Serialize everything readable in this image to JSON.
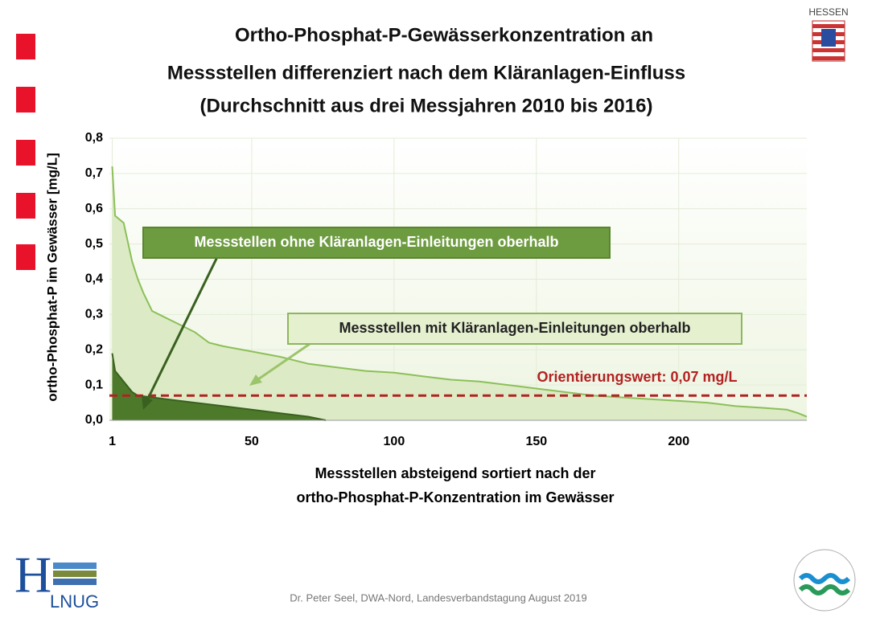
{
  "chart_data": {
    "type": "area",
    "title": [
      "Ortho-Phosphat-P-Gewässerkonzentration an",
      "Messstellen differenziert nach dem Kläranlagen-Einfluss",
      "(Durchschnitt aus drei Messjahren 2010 bis 2016)"
    ],
    "xlabel": [
      "Messstellen absteigend sortiert nach der",
      "ortho-Phosphat-P-Konzentration im Gewässer"
    ],
    "ylabel": "ortho-Phosphat-P im Gewässer [mg/L]",
    "xlim": [
      0,
      245
    ],
    "xticks": [
      1,
      50,
      100,
      150,
      200
    ],
    "ylim": [
      0,
      0.8
    ],
    "yticks": [
      {
        "value": 0,
        "label": "0,0"
      },
      {
        "value": 0.1,
        "label": "0,1"
      },
      {
        "value": 0.2,
        "label": "0,2"
      },
      {
        "value": 0.3,
        "label": "0,3"
      },
      {
        "value": 0.4,
        "label": "0,4"
      },
      {
        "value": 0.5,
        "label": "0,5"
      },
      {
        "value": 0.6,
        "label": "0,6"
      },
      {
        "value": 0.7,
        "label": "0,7"
      },
      {
        "value": 0.8,
        "label": "0,8"
      }
    ],
    "grid": true,
    "series": [
      {
        "name": "Messstellen mit Kläranlagen-Einleitungen oberhalb",
        "color": "#8cbf5a",
        "fill": "#dcebc5",
        "x": [
          1,
          2,
          5,
          8,
          10,
          12,
          15,
          20,
          25,
          30,
          35,
          40,
          50,
          60,
          70,
          80,
          90,
          100,
          110,
          120,
          130,
          140,
          150,
          160,
          170,
          180,
          190,
          200,
          210,
          220,
          230,
          238,
          242,
          245
        ],
        "values": [
          0.72,
          0.58,
          0.56,
          0.45,
          0.4,
          0.36,
          0.31,
          0.29,
          0.27,
          0.25,
          0.22,
          0.21,
          0.195,
          0.18,
          0.16,
          0.15,
          0.14,
          0.135,
          0.125,
          0.115,
          0.11,
          0.1,
          0.09,
          0.08,
          0.07,
          0.065,
          0.06,
          0.055,
          0.05,
          0.04,
          0.035,
          0.03,
          0.02,
          0.01
        ]
      },
      {
        "name": "Messstellen ohne Kläranlagen-Einleitungen oberhalb",
        "color": "#3a6020",
        "fill": "#4d7a2a",
        "x": [
          1,
          2,
          5,
          8,
          10,
          20,
          30,
          40,
          50,
          60,
          70,
          76
        ],
        "values": [
          0.19,
          0.14,
          0.11,
          0.08,
          0.07,
          0.06,
          0.05,
          0.04,
          0.03,
          0.02,
          0.01,
          0
        ]
      }
    ],
    "reference": {
      "value": 0.07,
      "label": "Orientierungswert: 0,07 mg/L",
      "color": "#b22222"
    }
  },
  "slide": {
    "footer": "Dr. Peter Seel, DWA-Nord,  Landesverbandstagung August 2019",
    "state": "HESSEN",
    "logo": [
      "H",
      "LNUG"
    ]
  }
}
